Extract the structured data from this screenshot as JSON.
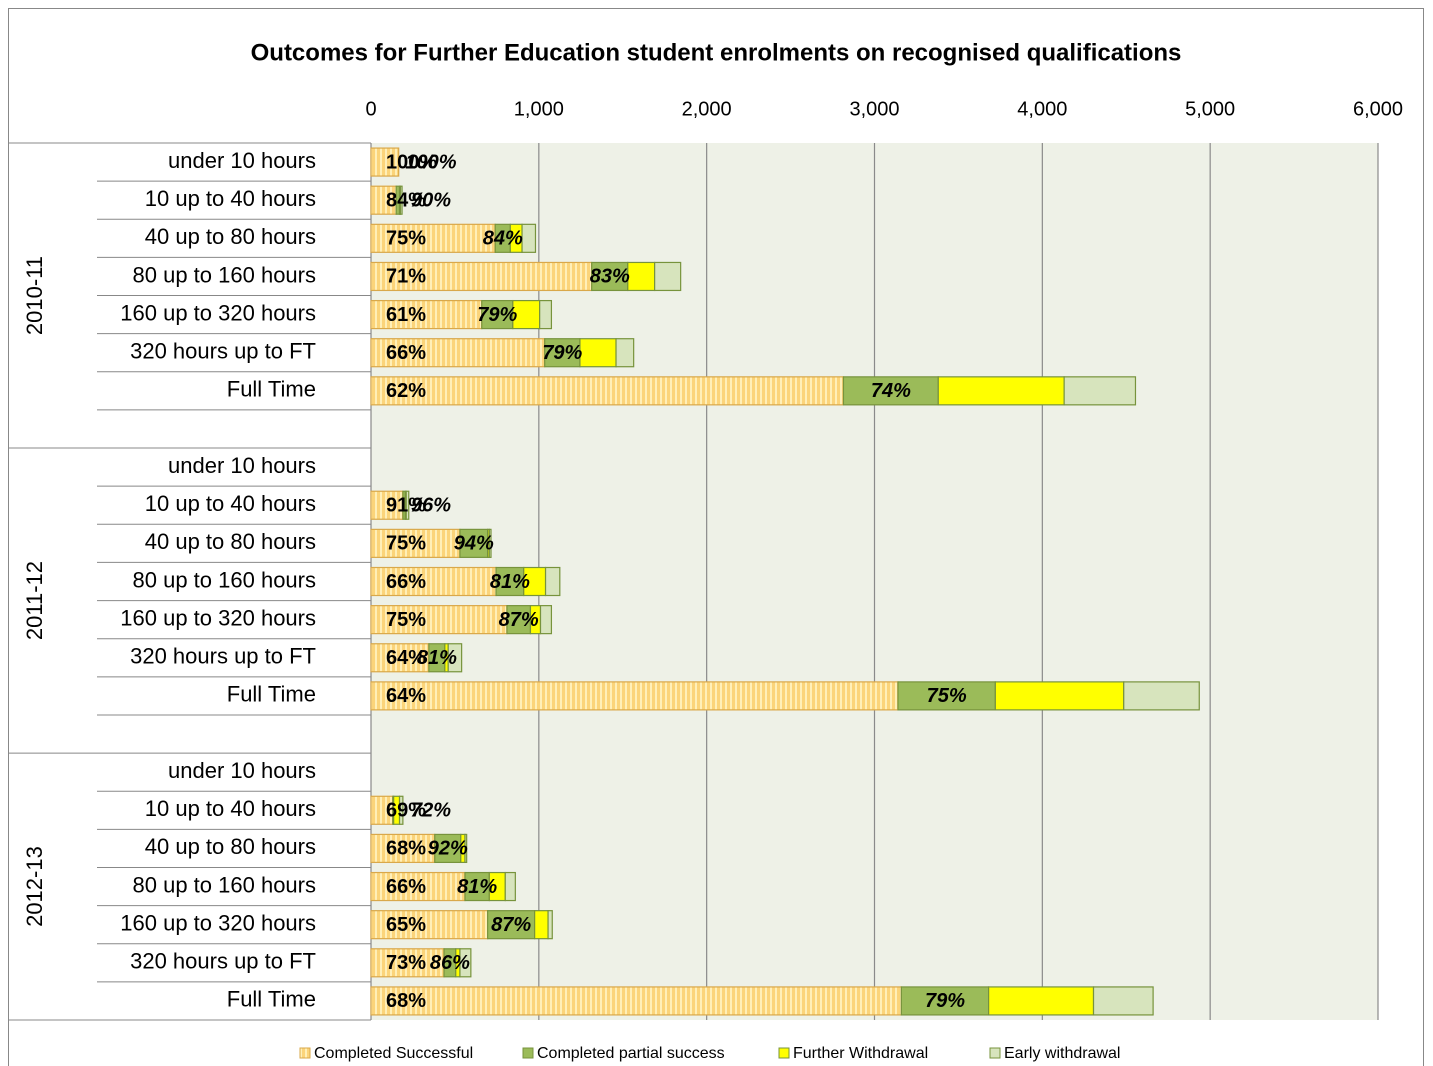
{
  "chart_data": {
    "type": "stacked-bar-horizontal",
    "title": "Outcomes for Further Education student enrolments on recognised qualifications",
    "category_groups": [
      "2010-11",
      "2011-12",
      "2012-13"
    ],
    "categories": [
      "under 10 hours",
      "10 up to 40 hours",
      "40 up to 80 hours",
      "80 up to 160 hours",
      "160 up to 320 hours",
      "320 hours up to FT",
      "Full Time",
      null,
      "under 10 hours",
      "10 up to 40 hours",
      "40 up to 80 hours",
      "80 up to 160 hours",
      "160 up to 320 hours",
      "320 hours up to FT",
      "Full Time",
      null,
      "under 10 hours",
      "10 up to 40 hours",
      "40 up to 80 hours",
      "80 up to 160 hours",
      "160 up to 320 hours",
      "320 hours up to FT",
      "Full Time"
    ],
    "series": [
      {
        "name": "Completed Successful",
        "color": "#fbd47a",
        "values": [
          165,
          150,
          740,
          1315,
          660,
          1035,
          2815,
          null,
          0,
          190,
          530,
          745,
          810,
          345,
          3140,
          null,
          0,
          130,
          380,
          560,
          695,
          435,
          3160
        ]
      },
      {
        "name": "Completed partial success",
        "color": "#9bbb59",
        "values": [
          0,
          20,
          90,
          215,
          185,
          210,
          565,
          null,
          0,
          15,
          165,
          165,
          140,
          95,
          580,
          null,
          0,
          5,
          155,
          145,
          280,
          70,
          520
        ]
      },
      {
        "name": "Further Withdrawal",
        "color": "#ffff00",
        "values": [
          0,
          5,
          70,
          160,
          160,
          215,
          750,
          null,
          0,
          5,
          10,
          130,
          60,
          20,
          765,
          null,
          0,
          35,
          25,
          95,
          80,
          25,
          625
        ]
      },
      {
        "name": "Early withdrawal",
        "color": "#d7e4bd",
        "values": [
          0,
          10,
          80,
          155,
          70,
          105,
          425,
          null,
          0,
          15,
          10,
          85,
          65,
          80,
          450,
          null,
          0,
          20,
          10,
          60,
          25,
          65,
          355
        ]
      }
    ],
    "success_labels": [
      "100%",
      "84%",
      "75%",
      "71%",
      "61%",
      "66%",
      "62%",
      null,
      null,
      "91%",
      "75%",
      "66%",
      "75%",
      "64%",
      "64%",
      null,
      null,
      "69%",
      "68%",
      "66%",
      "65%",
      "73%",
      "68%"
    ],
    "completion_labels": [
      "100%",
      "90%",
      "84%",
      "83%",
      "79%",
      "79%",
      "74%",
      null,
      null,
      "96%",
      "94%",
      "81%",
      "87%",
      "81%",
      "75%",
      null,
      null,
      "72%",
      "92%",
      "81%",
      "87%",
      "86%",
      "79%"
    ],
    "xlim": [
      0,
      6000
    ],
    "xticks": [
      0,
      {
        "value": 1000,
        "label": "1,000"
      },
      {
        "value": 2000,
        "label": "2,000"
      },
      {
        "value": 3000,
        "label": "3,000"
      },
      {
        "value": 4000,
        "label": "4,000"
      },
      {
        "value": 5000,
        "label": "5,000"
      },
      {
        "value": 6000,
        "label": "6,000"
      }
    ],
    "grid": true,
    "legend": "bottom"
  }
}
